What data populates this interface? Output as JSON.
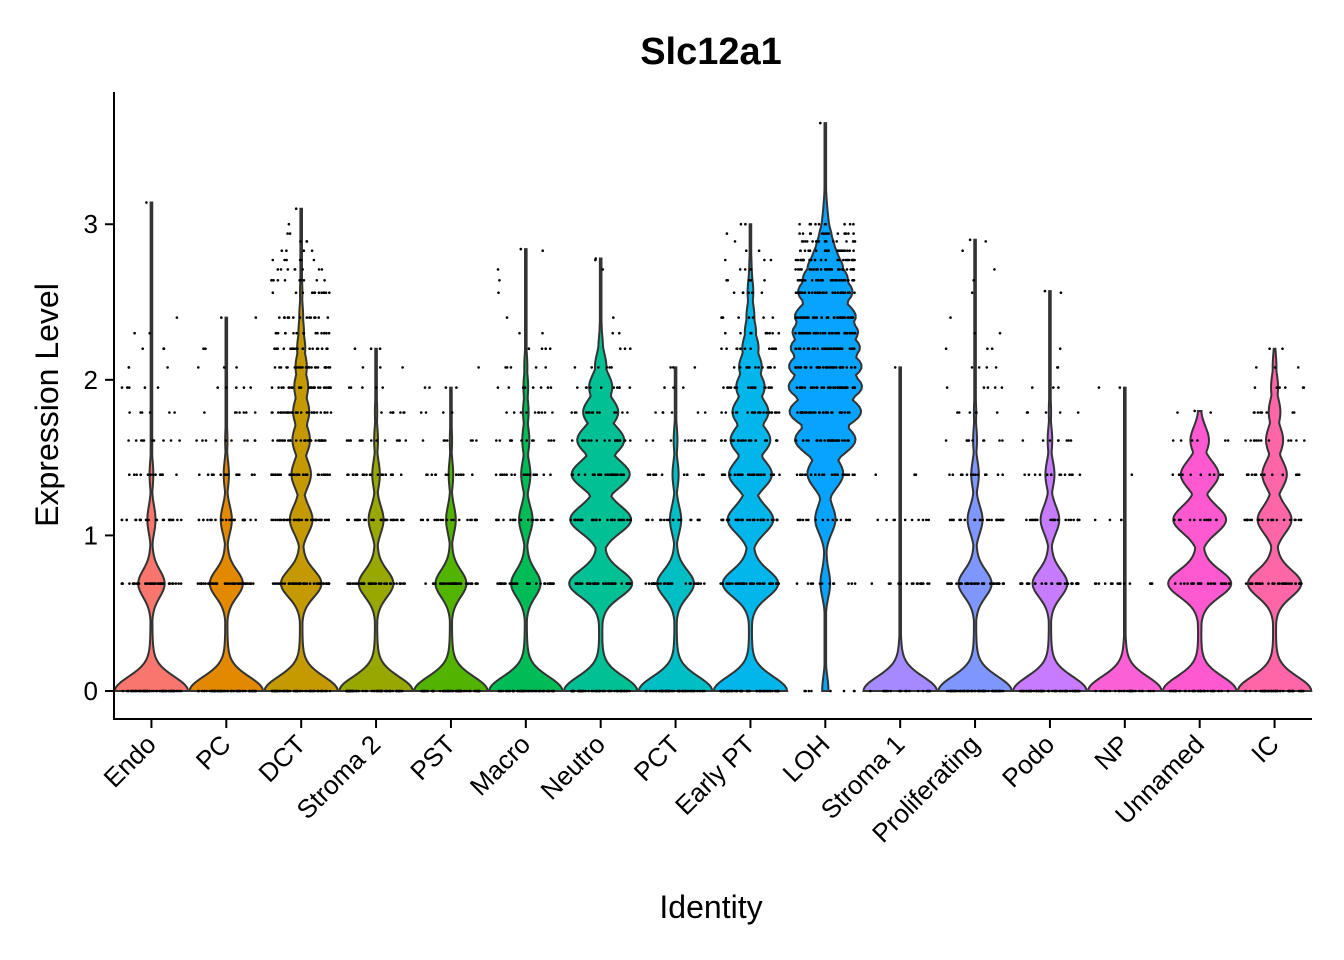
{
  "chart_data": {
    "type": "violin",
    "title": "Slc12a1",
    "xlabel": "Identity",
    "ylabel": "Expression Level",
    "ylim": [
      -0.18,
      3.85
    ],
    "yticks": [
      0,
      1,
      2,
      3
    ],
    "grid": false,
    "legend": "none",
    "categories": [
      "Endo",
      "PC",
      "DCT",
      "Stroma 2",
      "PST",
      "Macro",
      "Neutro",
      "PCT",
      "Early PT",
      "LOH",
      "Stroma 1",
      "Proliferating",
      "Podo",
      "NP",
      "Unnamed",
      "IC"
    ],
    "colors": [
      "#F8766D",
      "#E38900",
      "#C49A00",
      "#99A800",
      "#53B400",
      "#00BC56",
      "#00C094",
      "#00BFC4",
      "#00B6EB",
      "#06A4FF",
      "#A58AFF",
      "#7F96FF",
      "#C77CFF",
      "#FB61D7",
      "#FF59D2",
      "#FF66A8"
    ],
    "max_values": [
      3.14,
      2.4,
      3.1,
      2.2,
      1.95,
      2.84,
      2.78,
      2.08,
      3.0,
      3.65,
      2.08,
      2.9,
      2.57,
      1.95,
      1.8,
      2.2
    ],
    "density_levels": [
      0,
      0.69,
      1.1,
      1.39,
      1.61,
      1.79,
      1.95,
      2.08,
      2.2,
      2.3,
      2.4,
      2.56,
      2.64,
      2.71,
      2.77,
      2.83,
      2.89,
      2.94,
      3.0
    ],
    "relative_density": [
      [
        1.0,
        0.36,
        0.11,
        0.05,
        0.02,
        0.01,
        0.005,
        0.003,
        0.002,
        0.001,
        0,
        0,
        0,
        0,
        0,
        0,
        0,
        0,
        0
      ],
      [
        1.0,
        0.45,
        0.15,
        0.07,
        0.03,
        0.02,
        0.01,
        0.005,
        0.003,
        0.001,
        0.001,
        0,
        0,
        0,
        0,
        0,
        0,
        0,
        0
      ],
      [
        1.0,
        0.55,
        0.3,
        0.25,
        0.22,
        0.2,
        0.17,
        0.14,
        0.1,
        0.07,
        0.05,
        0.03,
        0.02,
        0.01,
        0.005,
        0.003,
        0.002,
        0.001,
        0.001
      ],
      [
        1.0,
        0.47,
        0.2,
        0.1,
        0.05,
        0.03,
        0.015,
        0.007,
        0.003,
        0,
        0,
        0,
        0,
        0,
        0,
        0,
        0,
        0,
        0
      ],
      [
        1.0,
        0.42,
        0.13,
        0.06,
        0.03,
        0.01,
        0.005,
        0,
        0,
        0,
        0,
        0,
        0,
        0,
        0,
        0,
        0,
        0,
        0
      ],
      [
        1.0,
        0.4,
        0.18,
        0.12,
        0.09,
        0.07,
        0.06,
        0.04,
        0.02,
        0.01,
        0.005,
        0.003,
        0.002,
        0.001,
        0,
        0,
        0,
        0,
        0
      ],
      [
        1.0,
        0.85,
        0.8,
        0.75,
        0.6,
        0.45,
        0.3,
        0.15,
        0.06,
        0.03,
        0.01,
        0.005,
        0.003,
        0.002,
        0.001,
        0,
        0,
        0,
        0
      ],
      [
        1.0,
        0.5,
        0.15,
        0.08,
        0.05,
        0.02,
        0.01,
        0.005,
        0,
        0,
        0,
        0,
        0,
        0,
        0,
        0,
        0,
        0,
        0
      ],
      [
        1.0,
        0.75,
        0.6,
        0.55,
        0.5,
        0.45,
        0.35,
        0.28,
        0.2,
        0.14,
        0.1,
        0.07,
        0.04,
        0.03,
        0.02,
        0.01,
        0.005,
        0.003,
        0.001
      ],
      [
        0.1,
        0.15,
        0.3,
        0.5,
        0.85,
        1.0,
        1.0,
        0.98,
        0.93,
        0.9,
        0.85,
        0.72,
        0.6,
        0.48,
        0.36,
        0.27,
        0.2,
        0.13,
        0.08
      ],
      [
        1.0,
        0.0,
        0,
        0,
        0,
        0,
        0,
        0,
        0,
        0,
        0,
        0,
        0,
        0,
        0,
        0,
        0,
        0,
        0
      ],
      [
        1.0,
        0.45,
        0.2,
        0.1,
        0.05,
        0.03,
        0.015,
        0.007,
        0.003,
        0.002,
        0.001,
        0,
        0,
        0,
        0,
        0,
        0,
        0,
        0
      ],
      [
        1.0,
        0.47,
        0.25,
        0.12,
        0.06,
        0.03,
        0.015,
        0.007,
        0.003,
        0.001,
        0,
        0,
        0,
        0,
        0,
        0,
        0,
        0,
        0
      ],
      [
        1.0,
        0.0,
        0,
        0,
        0,
        0,
        0,
        0,
        0,
        0,
        0,
        0,
        0,
        0,
        0,
        0,
        0,
        0,
        0
      ],
      [
        1.0,
        0.85,
        0.7,
        0.5,
        0.25,
        0.05,
        0,
        0,
        0,
        0,
        0,
        0,
        0,
        0,
        0,
        0,
        0,
        0,
        0
      ],
      [
        1.0,
        0.72,
        0.45,
        0.32,
        0.22,
        0.15,
        0.09,
        0.05,
        0.02,
        0,
        0,
        0,
        0,
        0,
        0,
        0,
        0,
        0,
        0
      ]
    ],
    "point_counts": [
      [
        60,
        40,
        24,
        16,
        10,
        7,
        5,
        3,
        3,
        2,
        1,
        0,
        0,
        0,
        0,
        0,
        0,
        0,
        0
      ],
      [
        60,
        40,
        24,
        16,
        10,
        7,
        5,
        3,
        2,
        0,
        1,
        0,
        0,
        0,
        0,
        0,
        0,
        0,
        0
      ],
      [
        60,
        46,
        40,
        36,
        32,
        30,
        28,
        24,
        20,
        16,
        14,
        12,
        10,
        8,
        6,
        4,
        3,
        2,
        1
      ],
      [
        60,
        40,
        30,
        24,
        14,
        8,
        5,
        3,
        2,
        0,
        0,
        0,
        0,
        0,
        0,
        0,
        0,
        0,
        0
      ],
      [
        60,
        34,
        20,
        12,
        7,
        4,
        3,
        1,
        0,
        0,
        0,
        0,
        0,
        0,
        0,
        0,
        0,
        0,
        0
      ],
      [
        60,
        36,
        22,
        16,
        12,
        10,
        8,
        5,
        4,
        2,
        1,
        1,
        1,
        1,
        0,
        1,
        0,
        0,
        0
      ],
      [
        60,
        40,
        32,
        26,
        20,
        14,
        10,
        6,
        3,
        2,
        1,
        0,
        0,
        1,
        1,
        0,
        0,
        0,
        0
      ],
      [
        60,
        36,
        20,
        14,
        10,
        6,
        3,
        2,
        0,
        0,
        0,
        0,
        0,
        0,
        0,
        0,
        0,
        0,
        0
      ],
      [
        60,
        42,
        34,
        30,
        26,
        22,
        18,
        14,
        12,
        10,
        8,
        6,
        5,
        4,
        3,
        2,
        1,
        1,
        1
      ],
      [
        8,
        12,
        16,
        22,
        30,
        36,
        40,
        40,
        40,
        40,
        40,
        38,
        34,
        30,
        26,
        22,
        18,
        14,
        10
      ],
      [
        20,
        18,
        10,
        3,
        0,
        0,
        0,
        0,
        0,
        0,
        0,
        0,
        0,
        0,
        0,
        0,
        0,
        0,
        0
      ],
      [
        60,
        40,
        24,
        16,
        10,
        6,
        5,
        4,
        3,
        2,
        1,
        1,
        1,
        1,
        0,
        1,
        1,
        0,
        0
      ],
      [
        60,
        36,
        22,
        14,
        8,
        5,
        3,
        2,
        1,
        0,
        0,
        1,
        0,
        0,
        0,
        0,
        0,
        0,
        0
      ],
      [
        28,
        16,
        4,
        1,
        0,
        0,
        1,
        0,
        0,
        0,
        0,
        0,
        0,
        0,
        0,
        0,
        0,
        0,
        0
      ],
      [
        40,
        26,
        14,
        10,
        6,
        2,
        0,
        0,
        0,
        0,
        0,
        0,
        0,
        0,
        0,
        0,
        0,
        0,
        0
      ],
      [
        50,
        34,
        22,
        16,
        12,
        8,
        6,
        3,
        1,
        0,
        0,
        0,
        0,
        0,
        0,
        0,
        0,
        0,
        0
      ]
    ]
  }
}
